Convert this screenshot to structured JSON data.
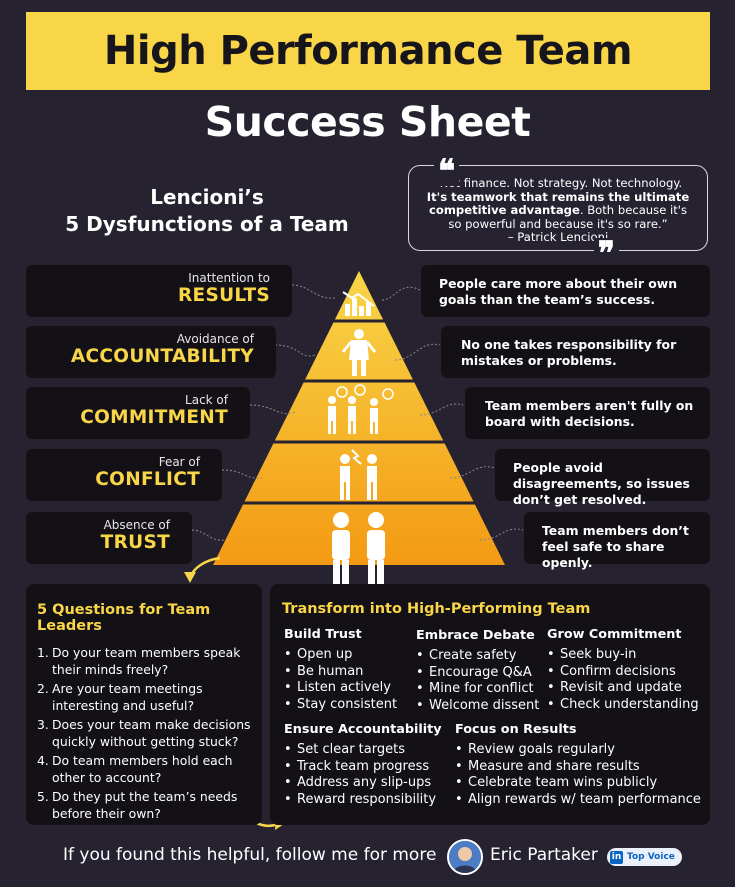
{
  "header": {
    "title": "High Performance Team",
    "subtitle": "Success Sheet"
  },
  "model": {
    "line1": "Lencioni’s",
    "line2": "5 Dysfunctions of a Team"
  },
  "quote": {
    "open_mark": "❝",
    "close_mark": "❞",
    "part1": "“Not finance. Not strategy. Not technology.",
    "bold": "It's teamwork that remains the ultimate competitive advantage",
    "part2": ". Both because it's so powerful and because it's so rare.”",
    "author": "– Patrick Lencioni"
  },
  "dysfunctions": [
    {
      "prefix": "Inattention to",
      "name": "RESULTS",
      "description": "People care more about their own goals than the team’s success.",
      "icon": "chart-icon"
    },
    {
      "prefix": "Avoidance of",
      "name": "ACCOUNTABILITY",
      "description": "No one takes responsibility for mistakes or problems.",
      "icon": "shrug-person-icon"
    },
    {
      "prefix": "Lack of",
      "name": "COMMITMENT",
      "description": "Team members aren't fully on board with decisions.",
      "icon": "mixed-votes-icon"
    },
    {
      "prefix": "Fear of",
      "name": "CONFLICT",
      "description": "People avoid disagreements, so issues don’t get resolved.",
      "icon": "argument-icon"
    },
    {
      "prefix": "Absence of",
      "name": "TRUST",
      "description": "Team members don’t feel safe to share openly.",
      "icon": "crossed-arms-icon"
    }
  ],
  "questions": {
    "title": "5 Questions for Team Leaders",
    "items": [
      {
        "num": "1.",
        "text": "Do your team members speak their minds freely?"
      },
      {
        "num": "2.",
        "text": "Are your team meetings interesting and useful?"
      },
      {
        "num": "3.",
        "text": "Does your team make decisions quickly without getting stuck?"
      },
      {
        "num": "4.",
        "text": "Do team members hold each other to account?"
      },
      {
        "num": "5.",
        "text": "Do they put the team’s needs before their own?"
      }
    ]
  },
  "transform": {
    "title": "Transform into High-Performing Team",
    "groups": [
      {
        "title": "Build Trust",
        "items": [
          "Open up",
          "Be human",
          "Listen actively",
          "Stay consistent"
        ]
      },
      {
        "title": "Embrace Debate",
        "items": [
          "Create safety",
          "Encourage Q&A",
          "Mine for conflict",
          "Welcome dissent"
        ]
      },
      {
        "title": "Grow Commitment",
        "items": [
          "Seek buy-in",
          "Confirm decisions",
          "Revisit and update",
          "Check understanding"
        ]
      },
      {
        "title": "Ensure Accountability",
        "items": [
          "Set clear targets",
          "Track team progress",
          "Address any slip-ups",
          "Reward responsibility"
        ]
      },
      {
        "title": "Focus on Results",
        "items": [
          "Review goals regularly",
          "Measure and share results",
          "Celebrate team wins publicly",
          "Align rewards w/ team performance"
        ]
      }
    ]
  },
  "footer": {
    "cta": "If you found this helpful, follow me for more",
    "author": "Eric Partaker",
    "badge_logo": "in",
    "badge_text": "Top Voice"
  },
  "colors": {
    "background": "#262230",
    "accent_yellow": "#f9d548",
    "box": "#131116",
    "pyramid_top": "#f9d548",
    "pyramid_bottom": "#f39a13"
  }
}
